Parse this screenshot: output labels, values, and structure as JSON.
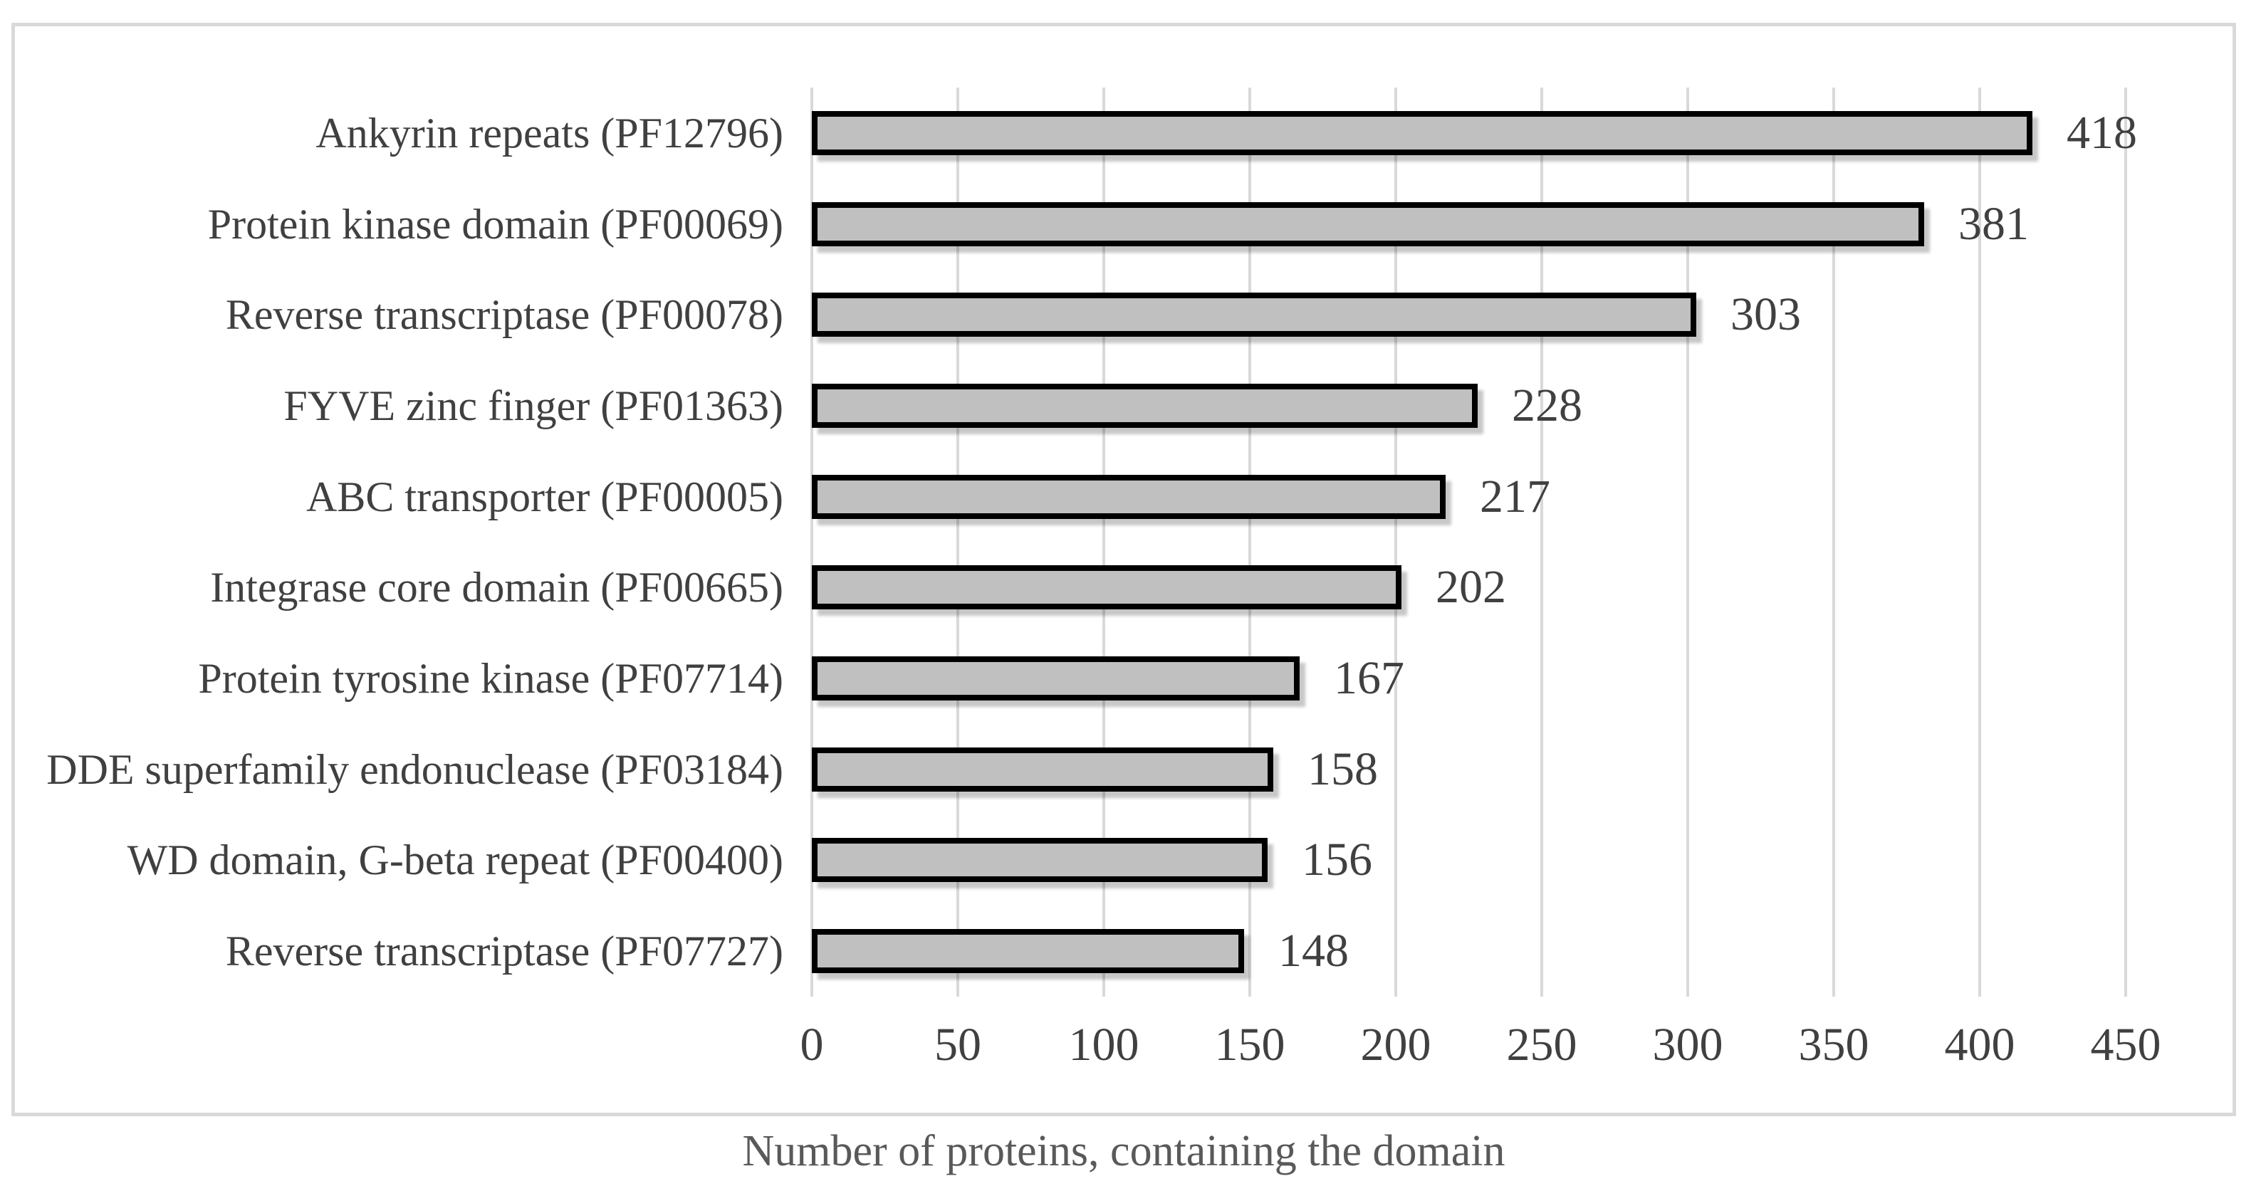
{
  "chart_data": {
    "type": "bar",
    "orientation": "horizontal",
    "title": "",
    "xlabel": "Number of proteins, containing the domain",
    "ylabel": "",
    "categories": [
      "Ankyrin repeats (PF12796)",
      "Protein kinase domain (PF00069)",
      "Reverse transcriptase (PF00078)",
      "FYVE zinc finger (PF01363)",
      "ABC transporter (PF00005)",
      "Integrase core domain (PF00665)",
      "Protein tyrosine kinase (PF07714)",
      "DDE superfamily endonuclease (PF03184)",
      "WD domain, G-beta repeat (PF00400)",
      "Reverse transcriptase (PF07727)"
    ],
    "values": [
      418,
      381,
      303,
      228,
      217,
      202,
      167,
      158,
      156,
      148
    ],
    "value_labels": [
      "418",
      "381",
      "303",
      "228",
      "217",
      "202",
      "167",
      "158",
      "156",
      "148"
    ],
    "xlim": [
      0,
      450
    ],
    "xticks": [
      0,
      50,
      100,
      150,
      200,
      250,
      300,
      350,
      400,
      450
    ],
    "grid": "vertical-gridlines",
    "legend": "none",
    "colors": {
      "bar_fill": "#c0c0c0",
      "bar_border": "#000000",
      "gridline": "#d9d9d9",
      "frame_border": "#d9d9d9",
      "category_label": "#404040",
      "tick_label": "#404040",
      "value_label": "#404040",
      "xlabel": "#595959",
      "background": "#ffffff"
    }
  }
}
